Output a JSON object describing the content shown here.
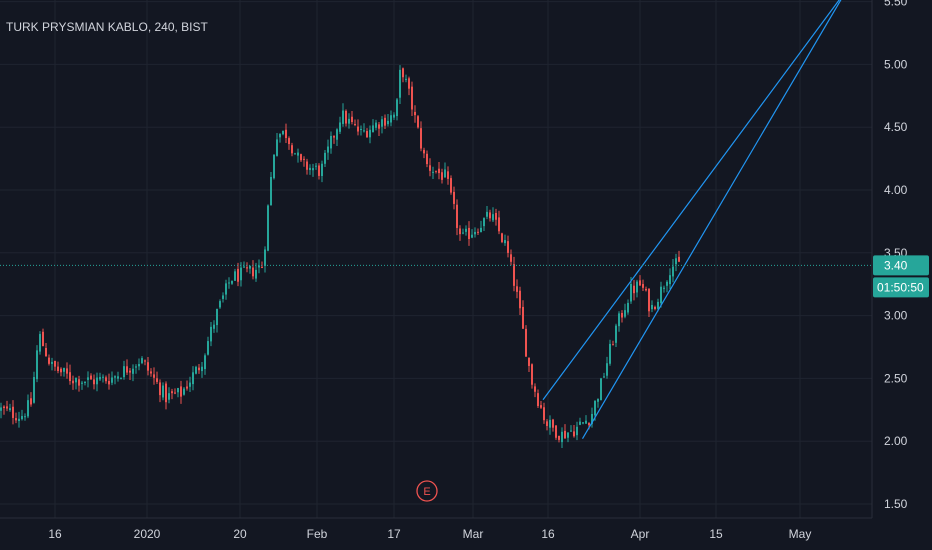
{
  "chart_data": {
    "type": "candlestick",
    "title": "TURK PRYSMIAN KABLO, 240, BIST",
    "ylim": [
      1.5,
      5.5
    ],
    "y_ticks": [
      "1.50",
      "2.00",
      "2.50",
      "3.00",
      "3.50",
      "4.00",
      "4.50",
      "5.00",
      "5.50"
    ],
    "x_ticks": [
      "16",
      "2020",
      "20",
      "Feb",
      "17",
      "Mar",
      "16",
      "Apr",
      "15",
      "May"
    ],
    "grid": true,
    "last_price_label": "3.40",
    "countdown_label": "01:50:50",
    "price_line": 3.4,
    "event_marker": "E",
    "colors": {
      "background": "#131722",
      "up": "#26a69a",
      "down": "#ef5350",
      "grid": "#1f2430",
      "text": "#d1d4dc",
      "channel": "#2196f3",
      "price_line": "#26a69a"
    },
    "series": [
      {
        "name": "price",
        "keypoints": [
          [
            0,
            2.25
          ],
          [
            20,
            2.2
          ],
          [
            30,
            2.3
          ],
          [
            38,
            2.85
          ],
          [
            50,
            2.6
          ],
          [
            70,
            2.5
          ],
          [
            90,
            2.48
          ],
          [
            110,
            2.5
          ],
          [
            140,
            2.65
          ],
          [
            165,
            2.35
          ],
          [
            180,
            2.38
          ],
          [
            200,
            2.62
          ],
          [
            215,
            3.0
          ],
          [
            230,
            3.3
          ],
          [
            250,
            3.35
          ],
          [
            262,
            3.4
          ],
          [
            268,
            3.95
          ],
          [
            275,
            4.45
          ],
          [
            285,
            4.45
          ],
          [
            300,
            4.2
          ],
          [
            320,
            4.15
          ],
          [
            340,
            4.6
          ],
          [
            360,
            4.45
          ],
          [
            380,
            4.55
          ],
          [
            395,
            4.6
          ],
          [
            400,
            5.0
          ],
          [
            410,
            4.7
          ],
          [
            425,
            4.2
          ],
          [
            445,
            4.1
          ],
          [
            460,
            3.6
          ],
          [
            475,
            3.7
          ],
          [
            490,
            3.8
          ],
          [
            505,
            3.55
          ],
          [
            515,
            3.2
          ],
          [
            530,
            2.5
          ],
          [
            545,
            2.15
          ],
          [
            560,
            2.05
          ],
          [
            575,
            2.1
          ],
          [
            590,
            2.2
          ],
          [
            600,
            2.45
          ],
          [
            615,
            2.9
          ],
          [
            630,
            3.2
          ],
          [
            640,
            3.25
          ],
          [
            650,
            3.05
          ],
          [
            660,
            3.2
          ],
          [
            670,
            3.4
          ],
          [
            678,
            3.4
          ]
        ]
      }
    ],
    "channel_lines": [
      {
        "name": "upper",
        "points": [
          [
            "2020-03-16",
            2.33
          ],
          [
            "2020-05-11",
            5.6
          ]
        ]
      },
      {
        "name": "lower",
        "points": [
          [
            "2020-03-23",
            2.02
          ],
          [
            "2020-05-11",
            5.6
          ]
        ]
      }
    ]
  }
}
